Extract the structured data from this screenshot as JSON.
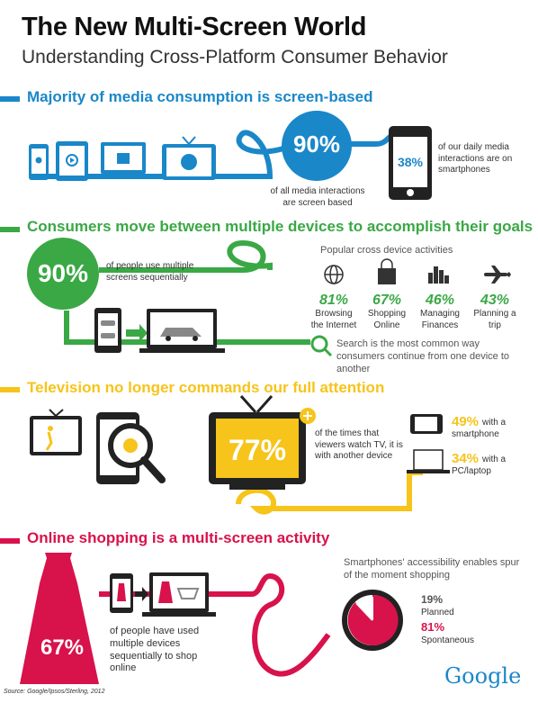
{
  "header": {
    "title": "The New Multi-Screen World",
    "subtitle": "Understanding Cross-Platform Consumer Behavior"
  },
  "colors": {
    "blue": "#1a87c9",
    "green": "#3aa845",
    "yellow": "#f6c41a",
    "red": "#d8124b",
    "dark": "#222222"
  },
  "section1": {
    "title": "Majority of media consumption is screen-based",
    "circle_pct": "90%",
    "circle_caption": "of all media interactions are screen based",
    "phone_pct": "38%",
    "phone_caption": "of our daily media interactions are on smartphones"
  },
  "section2": {
    "title": "Consumers move between multiple devices to accomplish their goals",
    "circle_pct": "90%",
    "circle_caption": "of people use multiple screens sequentially",
    "activities_title": "Popular cross device activities",
    "activities": [
      {
        "pct": "81%",
        "label": "Browsing the Internet",
        "icon": "globe-icon"
      },
      {
        "pct": "67%",
        "label": "Shopping Online",
        "icon": "shopping-bag-icon"
      },
      {
        "pct": "46%",
        "label": "Managing Finances",
        "icon": "bar-chart-icon"
      },
      {
        "pct": "43%",
        "label": "Planning a trip",
        "icon": "airplane-icon"
      }
    ],
    "search_caption": "Search is the most common way consumers continue from one device to another"
  },
  "section3": {
    "title": "Television no longer commands our full attention",
    "tv_pct": "77%",
    "tv_caption": "of the times that viewers watch TV, it is with another device",
    "smartphone_pct": "49%",
    "smartphone_label": "with a smartphone",
    "pc_pct": "34%",
    "pc_label": "with a PC/laptop"
  },
  "section4": {
    "title": "Online shopping is a multi-screen activity",
    "dress_pct": "67%",
    "dress_caption": "of people have used multiple devices sequentially to shop online",
    "clock_caption": "Smartphones' accessibility enables spur of the moment shopping",
    "planned_pct": "19%",
    "planned_label": "Planned",
    "spontaneous_pct": "81%",
    "spontaneous_label": "Spontaneous"
  },
  "footer": {
    "source": "Source: Google/Ipsos/Sterling, 2012",
    "logo": "Google"
  }
}
